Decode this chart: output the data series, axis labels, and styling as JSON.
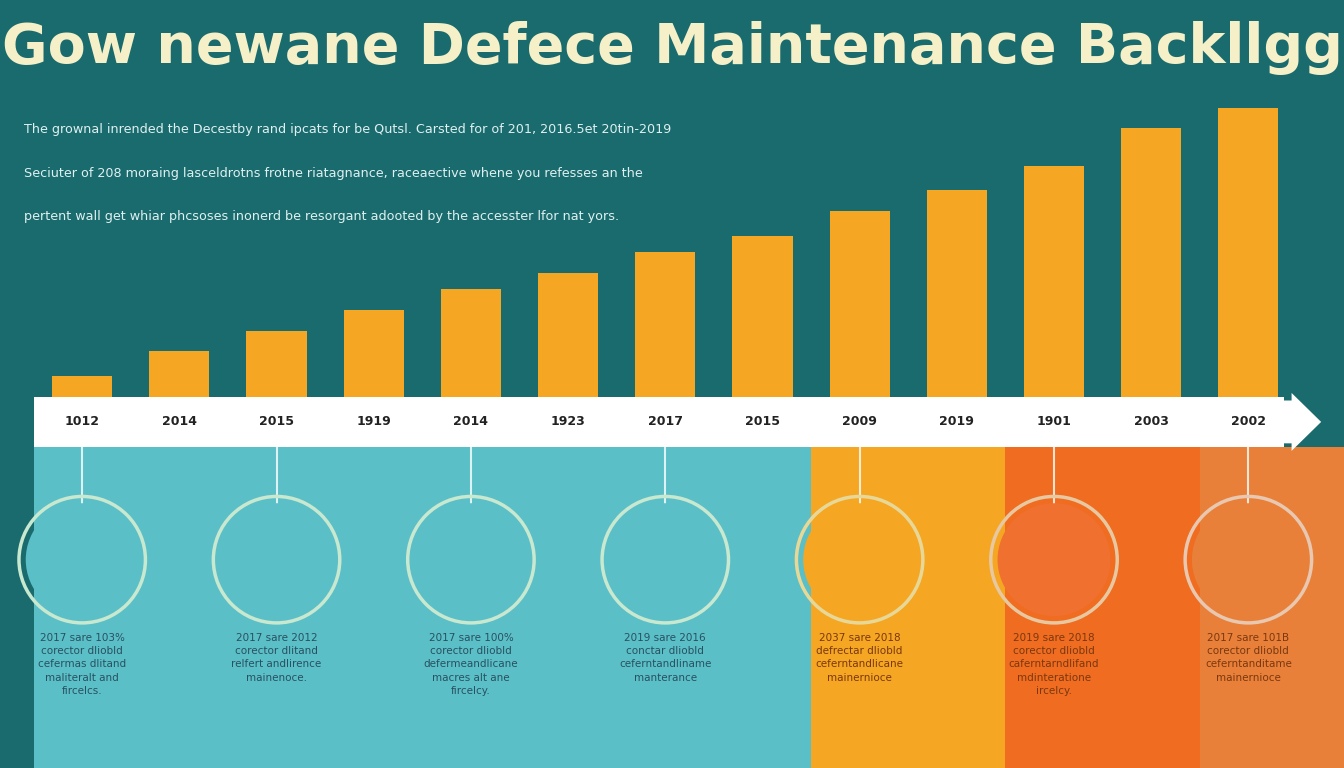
{
  "title": "Gow newane Defece Maintenance Backllgg",
  "title_color": "#F5F0C8",
  "header_bg": "#1a6b6e",
  "body_bg": "#5abfc7",
  "subtitle_lines": [
    "The grownal inrended the Decestby rand ipcats for be Qutsl. Carsted for of 201, 2016.5et 20tin-2019",
    "Seciuter of 208 moraing lasceldrotns frotne riatagnance, raceaective whene you refesses an the",
    "pertent wall get whiar phcsoses inonerd be resorgant adooted by the accesster lfor nat yors."
  ],
  "subtitle_color": "#dff0f0",
  "years": [
    "1012",
    "2014",
    "2015",
    "1919",
    "2014",
    "1923",
    "2017",
    "2015",
    "2009",
    "2019",
    "1901",
    "2003",
    "2002"
  ],
  "bar_heights": [
    1,
    2.2,
    3.2,
    4.2,
    5.2,
    6.0,
    7.0,
    7.8,
    9.0,
    10.0,
    11.2,
    13.0,
    14.0
  ],
  "bottom_panel_colors": [
    "#5abfc7",
    "#5abfc7",
    "#5abfc7",
    "#5abfc7",
    "#5abfc7",
    "#5abfc7",
    "#5abfc7",
    "#5abfc7",
    "#f5a623",
    "#f5a623",
    "#f07030",
    "#f07030",
    "#e8803a"
  ],
  "bottom_entries": [
    {
      "col": 0,
      "circle_color": "#5abfc7",
      "circle_border": "#c8e8d0",
      "label": "2017 sare 103%\ncorector dliobld\ncefermas dlitand\nmaliteralt and\nfircelcs."
    },
    {
      "col": 2,
      "circle_color": "#5abfc7",
      "circle_border": "#c8e8d0",
      "label": "2017 sare 2012\ncorector dlitand\nrelfert andlirence\nmainenoce."
    },
    {
      "col": 4,
      "circle_color": "#5abfc7",
      "circle_border": "#c8e8d0",
      "label": "2017 sare 100%\ncorector dliobld\ndefermeandlicane\nmacres alt ane\nfircelcy."
    },
    {
      "col": 6,
      "circle_color": "#5abfc7",
      "circle_border": "#c8e8d0",
      "label": "2019 sare 2016\nconctar dliobld\nceferntandliname\nmanterance"
    },
    {
      "col": 8,
      "circle_color": "#f5a623",
      "circle_border": "#e8d898",
      "label": "2037 sare 2018\ndefrectar dliobld\nceferntandlicane\nmainernioce"
    },
    {
      "col": 10,
      "circle_color": "#f07030",
      "circle_border": "#e8c8a0",
      "label": "2019 sare 2018\ncorector dliobld\ncaferntarndlifand\nmdinteratione\nircelcy."
    },
    {
      "col": 12,
      "circle_color": "#e8803a",
      "circle_border": "#e8c8b0",
      "label": "2017 sare 101B\ncorector dliobld\nceferntanditame\nmainernioce"
    }
  ],
  "label_color_teal": "#2a5060",
  "label_color_orange": "#7a3810"
}
